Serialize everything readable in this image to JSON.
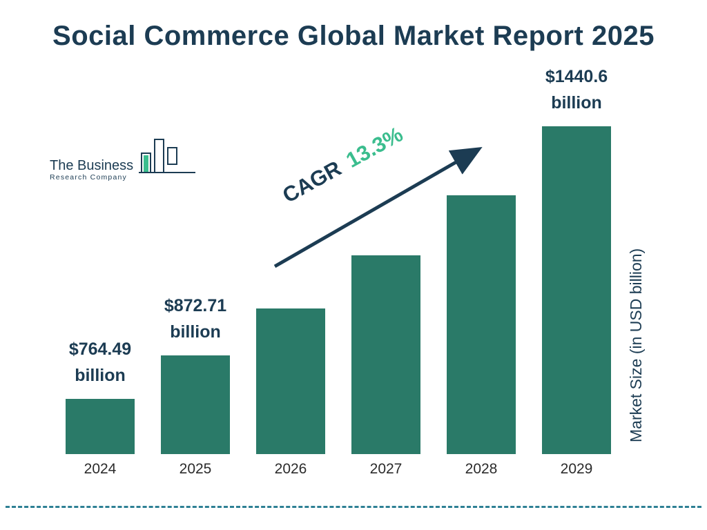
{
  "title": "Social Commerce Global Market Report 2025",
  "logo": {
    "line1": "The Business",
    "line2": "Research Company"
  },
  "cagr": {
    "prefix": "CAGR",
    "value": "13.3%"
  },
  "y_axis_label": "Market Size (in USD billion)",
  "colors": {
    "bar": "#2a7a68",
    "title": "#1c3c53",
    "accent_green": "#3bbd8e",
    "dashed_line": "#2e8094",
    "arrow": "#1c3c53"
  },
  "chart_data": {
    "type": "bar",
    "title": "Social Commerce Global Market Report 2025",
    "categories": [
      "2024",
      "2025",
      "2026",
      "2027",
      "2028",
      "2029"
    ],
    "values": [
      764.49,
      872.71,
      988.8,
      1120.3,
      1269.3,
      1440.6
    ],
    "value_labels": [
      {
        "index": 0,
        "line1": "$764.49",
        "line2": "billion"
      },
      {
        "index": 1,
        "line1": "$872.71",
        "line2": "billion"
      },
      {
        "index": 5,
        "line1": "$1440.6",
        "line2": "billion"
      }
    ],
    "xlabel": "",
    "ylabel": "Market Size (in USD billion)",
    "legend": "none",
    "grid": "off",
    "annotation": "CAGR 13.3%"
  }
}
